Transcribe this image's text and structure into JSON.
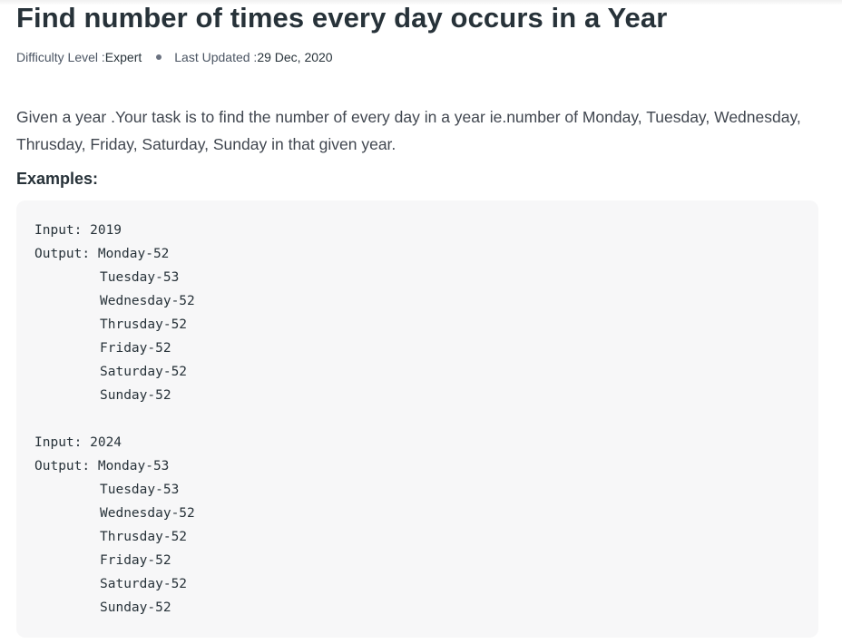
{
  "article": {
    "title": "Find number of times every day occurs in a Year",
    "meta": {
      "difficulty_label": "Difficulty Level : ",
      "difficulty_value": "Expert",
      "updated_label": "Last Updated : ",
      "updated_value": "29 Dec, 2020"
    },
    "intro": "Given a year .Your task is to find the number of every day in a year ie.number of Monday, Tuesday, Wednesday, Thrusday, Friday, Saturday, Sunday in that given year.",
    "examples_heading": "Examples:",
    "examples": [
      {
        "input": "Input: 2019",
        "output_first": "Output: Monday-52",
        "output_rest": [
          "Tuesday-53",
          "Wednesday-52",
          "Thrusday-52",
          "Friday-52",
          "Saturday-52",
          "Sunday-52"
        ]
      },
      {
        "input": "Input: 2024",
        "output_first": "Output: Monday-53",
        "output_rest": [
          "Tuesday-53",
          "Wednesday-52",
          "Thrusday-52",
          "Friday-52",
          "Saturday-52",
          "Sunday-52"
        ]
      }
    ]
  }
}
